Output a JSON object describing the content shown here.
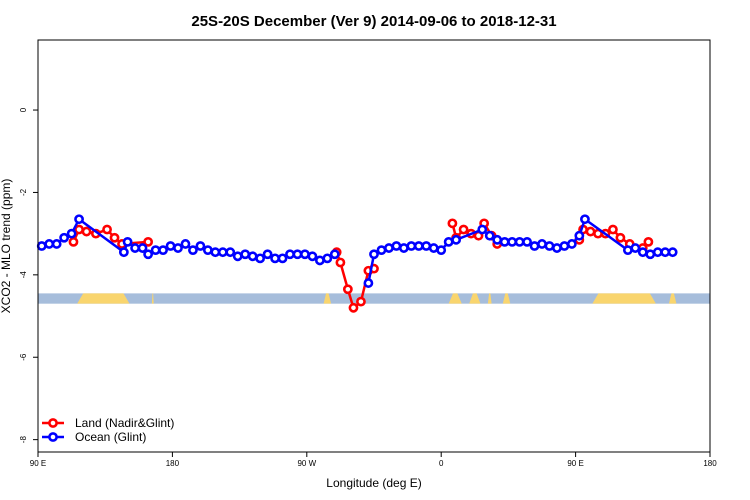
{
  "chart_data": {
    "type": "line",
    "title": "25S-20S December (Ver 9)   2014-09-06 to 2018-12-31",
    "xlabel": "Longitude (deg E)",
    "ylabel": "XCO2 - MLO trend (ppm)",
    "xlim": [
      90,
      450
    ],
    "ylim": [
      -8.3,
      1.7
    ],
    "x_ticks": [
      {
        "value": 90,
        "label": "90 E"
      },
      {
        "value": 162,
        "label": "180"
      },
      {
        "value": 234,
        "label": "90 W"
      },
      {
        "value": 306,
        "label": "0"
      },
      {
        "value": 378,
        "label": "90 E"
      },
      {
        "value": 450,
        "label": "180"
      }
    ],
    "y_ticks": [
      {
        "value": 0,
        "label": "0"
      },
      {
        "value": -2,
        "label": "-2"
      },
      {
        "value": -4,
        "label": "-4"
      },
      {
        "value": -6,
        "label": "-6"
      },
      {
        "value": -8,
        "label": "-8"
      }
    ],
    "grid": false,
    "legend_position": "bottom-left",
    "surface_band": {
      "y_top": -4.45,
      "y_bottom": -4.7,
      "ocean_color": "#a6bddb",
      "land_color": "#f9d56e",
      "land_segments": [
        [
          111,
          139
        ],
        [
          151,
          152
        ],
        [
          243,
          247
        ],
        [
          310,
          317
        ],
        [
          321,
          327
        ],
        [
          331,
          333
        ],
        [
          339,
          343
        ],
        [
          387,
          421
        ],
        [
          428,
          432
        ]
      ]
    },
    "series": [
      {
        "name": "Land (Nadir&Glint)",
        "color": "#ff0000",
        "segments": [
          [
            [
              109,
              -3.2
            ],
            [
              112,
              -2.9
            ],
            [
              116,
              -2.95
            ],
            [
              121,
              -3.0
            ],
            [
              127,
              -2.9
            ],
            [
              131,
              -3.1
            ],
            [
              135,
              -3.25
            ],
            [
              149,
              -3.2
            ]
          ],
          [
            [
              250,
              -3.45
            ],
            [
              252,
              -3.7
            ],
            [
              256,
              -4.35
            ],
            [
              259,
              -4.8
            ],
            [
              263,
              -4.65
            ],
            [
              267,
              -3.9
            ],
            [
              270,
              -3.85
            ]
          ],
          [
            [
              312,
              -2.75
            ],
            [
              314,
              -3.1
            ],
            [
              318,
              -2.9
            ],
            [
              322,
              -3.0
            ],
            [
              326,
              -3.05
            ],
            [
              329,
              -2.75
            ],
            [
              333,
              -3.05
            ],
            [
              336,
              -3.25
            ]
          ],
          [
            [
              380,
              -3.15
            ],
            [
              382,
              -2.9
            ],
            [
              386,
              -2.95
            ],
            [
              390,
              -3.0
            ],
            [
              394,
              -3.0
            ],
            [
              398,
              -2.9
            ],
            [
              402,
              -3.1
            ],
            [
              407,
              -3.25
            ],
            [
              414,
              -3.35
            ],
            [
              417,
              -3.2
            ]
          ]
        ]
      },
      {
        "name": "Ocean (Glint)",
        "color": "#0000ff",
        "segments": [
          [
            [
              92,
              -3.3
            ],
            [
              96,
              -3.25
            ],
            [
              100,
              -3.25
            ],
            [
              104,
              -3.1
            ],
            [
              108,
              -3.0
            ],
            [
              112,
              -2.65
            ],
            [
              136,
              -3.45
            ],
            [
              138,
              -3.2
            ],
            [
              142,
              -3.35
            ],
            [
              146,
              -3.35
            ],
            [
              149,
              -3.5
            ],
            [
              153,
              -3.4
            ],
            [
              157,
              -3.4
            ],
            [
              161,
              -3.3
            ],
            [
              165,
              -3.35
            ],
            [
              169,
              -3.25
            ],
            [
              173,
              -3.4
            ],
            [
              177,
              -3.3
            ],
            [
              181,
              -3.4
            ],
            [
              185,
              -3.45
            ],
            [
              189,
              -3.45
            ],
            [
              193,
              -3.45
            ],
            [
              197,
              -3.55
            ],
            [
              201,
              -3.5
            ],
            [
              205,
              -3.55
            ],
            [
              209,
              -3.6
            ],
            [
              213,
              -3.5
            ],
            [
              217,
              -3.6
            ],
            [
              221,
              -3.6
            ],
            [
              225,
              -3.5
            ],
            [
              229,
              -3.5
            ],
            [
              233,
              -3.5
            ],
            [
              237,
              -3.55
            ],
            [
              241,
              -3.65
            ],
            [
              245,
              -3.6
            ],
            [
              249,
              -3.5
            ]
          ],
          [
            [
              267,
              -4.2
            ],
            [
              270,
              -3.5
            ],
            [
              274,
              -3.4
            ],
            [
              278,
              -3.35
            ],
            [
              282,
              -3.3
            ],
            [
              286,
              -3.35
            ],
            [
              290,
              -3.3
            ],
            [
              294,
              -3.3
            ],
            [
              298,
              -3.3
            ],
            [
              302,
              -3.35
            ],
            [
              306,
              -3.4
            ],
            [
              310,
              -3.2
            ],
            [
              314,
              -3.15
            ],
            [
              328,
              -2.9
            ],
            [
              332,
              -3.05
            ],
            [
              336,
              -3.15
            ],
            [
              340,
              -3.2
            ],
            [
              344,
              -3.2
            ],
            [
              348,
              -3.2
            ],
            [
              352,
              -3.2
            ],
            [
              356,
              -3.3
            ],
            [
              360,
              -3.25
            ],
            [
              364,
              -3.3
            ],
            [
              368,
              -3.35
            ],
            [
              372,
              -3.3
            ],
            [
              376,
              -3.25
            ],
            [
              380,
              -3.05
            ],
            [
              383,
              -2.65
            ],
            [
              406,
              -3.4
            ],
            [
              410,
              -3.35
            ],
            [
              414,
              -3.45
            ],
            [
              418,
              -3.5
            ],
            [
              422,
              -3.45
            ],
            [
              426,
              -3.45
            ],
            [
              430,
              -3.45
            ]
          ]
        ]
      }
    ]
  }
}
